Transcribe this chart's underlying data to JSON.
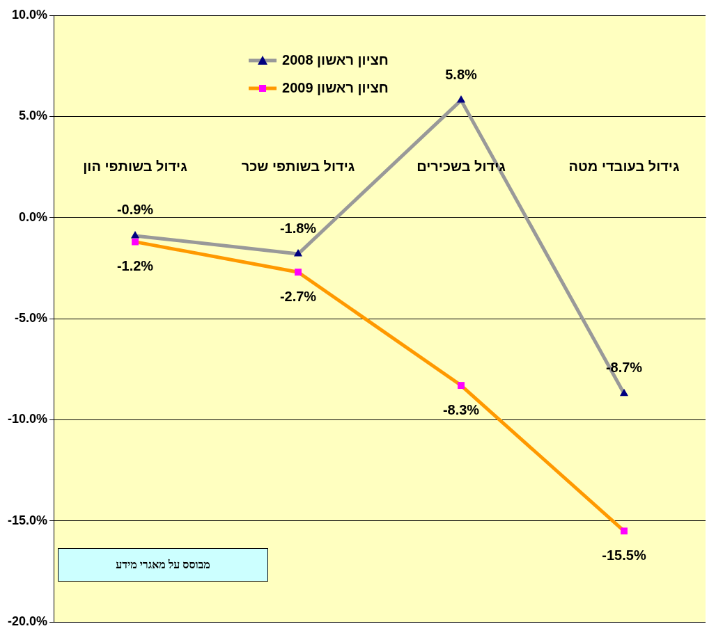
{
  "chart_data": {
    "type": "line",
    "categories": [
      "גידול בשותפי הון",
      "גידול בשותפי שכר",
      "גידול בשכירים",
      "גידול בעובדי מטה"
    ],
    "series": [
      {
        "name": "חציון ראשון 2008",
        "color": "#999999",
        "marker": "triangle",
        "values": [
          -0.9,
          -1.8,
          5.8,
          -8.7
        ],
        "value_labels": [
          "-0.9%",
          "-1.8%",
          "5.8%",
          "-8.7%"
        ]
      },
      {
        "name": "חציון ראשון 2009",
        "color": "#ff9900",
        "marker": "square",
        "values": [
          -1.2,
          -2.7,
          -8.3,
          -15.5
        ],
        "value_labels": [
          "-1.2%",
          "-2.7%",
          "-8.3%",
          "-15.5%"
        ]
      }
    ],
    "ylim": [
      -20,
      10
    ],
    "yticks": [
      {
        "value": -20,
        "label": "-20.0%"
      },
      {
        "value": -15,
        "label": "-15.0%"
      },
      {
        "value": -10,
        "label": "-10.0%"
      },
      {
        "value": -5,
        "label": "-5.0%"
      },
      {
        "value": 0,
        "label": "0.0%"
      },
      {
        "value": 5,
        "label": "5.0%"
      },
      {
        "value": 10,
        "label": "10.0%"
      }
    ],
    "grid": "y",
    "legend": "top left",
    "line_style": "solid",
    "annotations": [
      "מבוסס על מאגרי מידע"
    ]
  }
}
